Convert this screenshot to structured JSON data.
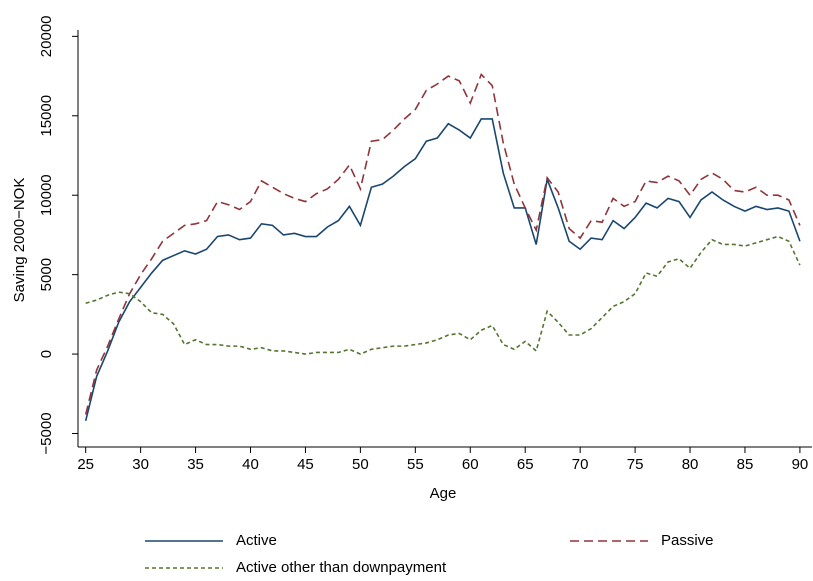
{
  "chart_data": {
    "type": "line",
    "x_label": "Age",
    "y_label": "Saving 2000−NOK",
    "x": [
      25,
      26,
      27,
      28,
      29,
      30,
      31,
      32,
      33,
      34,
      35,
      36,
      37,
      38,
      39,
      40,
      41,
      42,
      43,
      44,
      45,
      46,
      47,
      48,
      49,
      50,
      51,
      52,
      53,
      54,
      55,
      56,
      57,
      58,
      59,
      60,
      61,
      62,
      63,
      64,
      65,
      66,
      67,
      68,
      69,
      70,
      71,
      72,
      73,
      74,
      75,
      76,
      77,
      78,
      79,
      80,
      81,
      82,
      83,
      84,
      85,
      86,
      87,
      88,
      89,
      90
    ],
    "series": [
      {
        "name": "Active",
        "color": "#1a476f",
        "line_style": "solid",
        "values": [
          -4200,
          -1400,
          200,
          2000,
          3300,
          4200,
          5100,
          5900,
          6200,
          6500,
          6300,
          6600,
          7400,
          7500,
          7200,
          7300,
          8200,
          8100,
          7500,
          7600,
          7400,
          7400,
          8000,
          8400,
          9300,
          8100,
          10500,
          10700,
          11200,
          11800,
          12300,
          13400,
          13600,
          14500,
          14100,
          13600,
          14800,
          14800,
          11400,
          9200,
          9200,
          6900,
          11000,
          9200,
          7100,
          6600,
          7300,
          7200,
          8400,
          7900,
          8600,
          9500,
          9200,
          9800,
          9600,
          8600,
          9700,
          10200,
          9700,
          9300,
          9000,
          9300,
          9100,
          9200,
          9000,
          7100
        ]
      },
      {
        "name": "Passive",
        "color": "#90353b",
        "line_style": "dashed",
        "values": [
          -3800,
          -1000,
          500,
          2200,
          3800,
          5000,
          6000,
          7100,
          7600,
          8100,
          8200,
          8400,
          9600,
          9400,
          9100,
          9600,
          10900,
          10500,
          10100,
          9800,
          9600,
          10100,
          10400,
          11000,
          11900,
          10400,
          13400,
          13500,
          14100,
          14800,
          15400,
          16600,
          17000,
          17500,
          17200,
          15800,
          17600,
          16900,
          13300,
          10700,
          9200,
          7800,
          11100,
          10200,
          7900,
          7300,
          8400,
          8300,
          9800,
          9300,
          9600,
          10900,
          10800,
          11200,
          10900,
          10000,
          11000,
          11400,
          11000,
          10300,
          10200,
          10500,
          10000,
          10000,
          9700,
          8100
        ]
      },
      {
        "name": "Active other than downpayment",
        "color": "#55752f",
        "line_style": "dotted",
        "values": [
          3200,
          3400,
          3700,
          3900,
          3800,
          3300,
          2600,
          2500,
          1900,
          600,
          900,
          600,
          600,
          500,
          500,
          300,
          400,
          200,
          200,
          100,
          0,
          100,
          100,
          100,
          300,
          0,
          300,
          400,
          500,
          500,
          600,
          700,
          900,
          1200,
          1300,
          900,
          1500,
          1800,
          600,
          300,
          800,
          200,
          2700,
          2000,
          1200,
          1200,
          1600,
          2300,
          3000,
          3300,
          3800,
          5100,
          4900,
          5800,
          6000,
          5400,
          6400,
          7200,
          6900,
          6900,
          6800,
          7000,
          7200,
          7400,
          7100,
          5600
        ]
      }
    ],
    "xlim": [
      24.3,
      91.1
    ],
    "ylim": [
      -5850,
      20400
    ],
    "xticks": [
      25,
      30,
      35,
      40,
      45,
      50,
      55,
      60,
      65,
      70,
      75,
      80,
      85,
      90
    ],
    "yticks": [
      {
        "value": -5000,
        "label": "−5000"
      },
      0,
      5000,
      10000,
      15000,
      20000
    ],
    "legend_position": "bottom"
  }
}
